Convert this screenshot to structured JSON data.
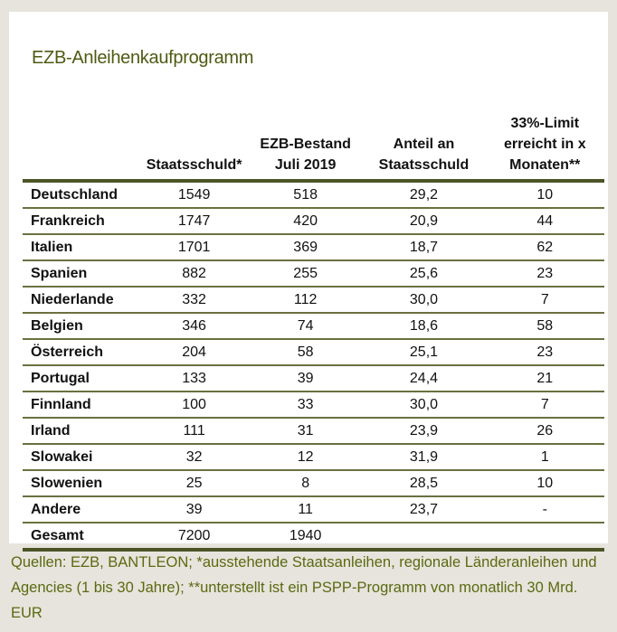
{
  "title": "EZB-Anleihenkaufprogramm",
  "headers": [
    "",
    "Staatsschuld*",
    "EZB-Bestand Juli 2019",
    "Anteil an Staatsschuld",
    "33%-Limit erreicht in x Monaten**"
  ],
  "rows": [
    [
      "Deutschland",
      "1549",
      "518",
      "29,2",
      "10"
    ],
    [
      "Frankreich",
      "1747",
      "420",
      "20,9",
      "44"
    ],
    [
      "Italien",
      "1701",
      "369",
      "18,7",
      "62"
    ],
    [
      "Spanien",
      "882",
      "255",
      "25,6",
      "23"
    ],
    [
      "Niederlande",
      "332",
      "112",
      "30,0",
      "7"
    ],
    [
      "Belgien",
      "346",
      "74",
      "18,6",
      "58"
    ],
    [
      "Österreich",
      "204",
      "58",
      "25,1",
      "23"
    ],
    [
      "Portugal",
      "133",
      "39",
      "24,4",
      "21"
    ],
    [
      "Finnland",
      "100",
      "33",
      "30,0",
      "7"
    ],
    [
      "Irland",
      "111",
      "31",
      "23,9",
      "26"
    ],
    [
      "Slowakei",
      "32",
      "12",
      "31,9",
      "1"
    ],
    [
      "Slowenien",
      "25",
      "8",
      "28,5",
      "10"
    ],
    [
      "Andere",
      "39",
      "11",
      "23,7",
      "-"
    ],
    [
      "Gesamt",
      "7200",
      "1940",
      "",
      ""
    ]
  ],
  "footer": "Quellen: EZB, BANTLEON; *ausstehende Staatsanleihen, regionale Länderanleihen und Agencies (1 bis 30 Jahre); **unterstellt ist ein PSPP-Programm von monatlich 30 Mrd. EUR"
}
